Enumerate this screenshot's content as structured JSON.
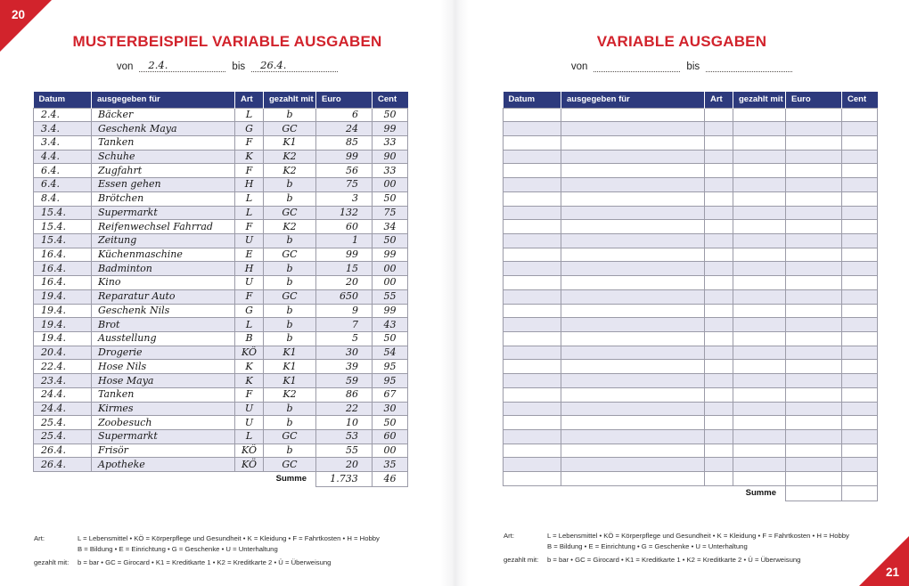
{
  "colors": {
    "red": "#d2232c",
    "blue": "#2d3a7d",
    "stripe": "#e5e5f1"
  },
  "page_left": {
    "page_number": "20",
    "title": "MUSTERBEISPIEL VARIABLE AUSGABEN",
    "von_label": "von",
    "bis_label": "bis",
    "von_value": "2.4.",
    "bis_value": "26.4.",
    "table": {
      "headers": [
        "Datum",
        "ausgegeben für",
        "Art",
        "gezahlt mit",
        "Euro",
        "Cent"
      ],
      "rows": [
        {
          "datum": "2.4.",
          "zweck": "Bäcker",
          "art": "L",
          "gezahlt": "b",
          "euro": "6",
          "cent": "50"
        },
        {
          "datum": "3.4.",
          "zweck": "Geschenk Maya",
          "art": "G",
          "gezahlt": "GC",
          "euro": "24",
          "cent": "99"
        },
        {
          "datum": "3.4.",
          "zweck": "Tanken",
          "art": "F",
          "gezahlt": "K1",
          "euro": "85",
          "cent": "33"
        },
        {
          "datum": "4.4.",
          "zweck": "Schuhe",
          "art": "K",
          "gezahlt": "K2",
          "euro": "99",
          "cent": "90"
        },
        {
          "datum": "6.4.",
          "zweck": "Zugfahrt",
          "art": "F",
          "gezahlt": "K2",
          "euro": "56",
          "cent": "33"
        },
        {
          "datum": "6.4.",
          "zweck": "Essen gehen",
          "art": "H",
          "gezahlt": "b",
          "euro": "75",
          "cent": "00"
        },
        {
          "datum": "8.4.",
          "zweck": "Brötchen",
          "art": "L",
          "gezahlt": "b",
          "euro": "3",
          "cent": "50"
        },
        {
          "datum": "15.4.",
          "zweck": "Supermarkt",
          "art": "L",
          "gezahlt": "GC",
          "euro": "132",
          "cent": "75"
        },
        {
          "datum": "15.4.",
          "zweck": "Reifenwechsel Fahrrad",
          "art": "F",
          "gezahlt": "K2",
          "euro": "60",
          "cent": "34"
        },
        {
          "datum": "15.4.",
          "zweck": "Zeitung",
          "art": "U",
          "gezahlt": "b",
          "euro": "1",
          "cent": "50"
        },
        {
          "datum": "16.4.",
          "zweck": "Küchenmaschine",
          "art": "E",
          "gezahlt": "GC",
          "euro": "99",
          "cent": "99"
        },
        {
          "datum": "16.4.",
          "zweck": "Badminton",
          "art": "H",
          "gezahlt": "b",
          "euro": "15",
          "cent": "00"
        },
        {
          "datum": "16.4.",
          "zweck": "Kino",
          "art": "U",
          "gezahlt": "b",
          "euro": "20",
          "cent": "00"
        },
        {
          "datum": "19.4.",
          "zweck": "Reparatur Auto",
          "art": "F",
          "gezahlt": "GC",
          "euro": "650",
          "cent": "55"
        },
        {
          "datum": "19.4.",
          "zweck": "Geschenk Nils",
          "art": "G",
          "gezahlt": "b",
          "euro": "9",
          "cent": "99"
        },
        {
          "datum": "19.4.",
          "zweck": "Brot",
          "art": "L",
          "gezahlt": "b",
          "euro": "7",
          "cent": "43"
        },
        {
          "datum": "19.4.",
          "zweck": "Ausstellung",
          "art": "B",
          "gezahlt": "b",
          "euro": "5",
          "cent": "50"
        },
        {
          "datum": "20.4.",
          "zweck": "Drogerie",
          "art": "KÖ",
          "gezahlt": "K1",
          "euro": "30",
          "cent": "54"
        },
        {
          "datum": "22.4.",
          "zweck": "Hose Nils",
          "art": "K",
          "gezahlt": "K1",
          "euro": "39",
          "cent": "95"
        },
        {
          "datum": "23.4.",
          "zweck": "Hose Maya",
          "art": "K",
          "gezahlt": "K1",
          "euro": "59",
          "cent": "95"
        },
        {
          "datum": "24.4.",
          "zweck": "Tanken",
          "art": "F",
          "gezahlt": "K2",
          "euro": "86",
          "cent": "67"
        },
        {
          "datum": "24.4.",
          "zweck": "Kirmes",
          "art": "U",
          "gezahlt": "b",
          "euro": "22",
          "cent": "30"
        },
        {
          "datum": "25.4.",
          "zweck": "Zoobesuch",
          "art": "U",
          "gezahlt": "b",
          "euro": "10",
          "cent": "50"
        },
        {
          "datum": "25.4.",
          "zweck": "Supermarkt",
          "art": "L",
          "gezahlt": "GC",
          "euro": "53",
          "cent": "60"
        },
        {
          "datum": "26.4.",
          "zweck": "Frisör",
          "art": "KÖ",
          "gezahlt": "b",
          "euro": "55",
          "cent": "00"
        },
        {
          "datum": "26.4.",
          "zweck": "Apotheke",
          "art": "KÖ",
          "gezahlt": "GC",
          "euro": "20",
          "cent": "35"
        }
      ],
      "summe_label": "Summe",
      "summe_euro": "1.733",
      "summe_cent": "46"
    },
    "legend": {
      "art_label": "Art:",
      "art_line1": "L = Lebensmittel • KÖ = Körperpflege und Gesundheit • K = Kleidung • F = Fahrtkosten • H = Hobby",
      "art_line2": "B = Bildung • E = Einrichtung • G = Geschenke • U = Unterhaltung",
      "paid_label": "gezahlt mit:",
      "paid_line": "b = bar • GC = Girocard • K1 = Kreditkarte 1 • K2 = Kreditkarte 2 • Ü = Überweisung"
    }
  },
  "page_right": {
    "page_number": "21",
    "title": "VARIABLE AUSGABEN",
    "von_label": "von",
    "bis_label": "bis",
    "von_value": "",
    "bis_value": "",
    "table": {
      "headers": [
        "Datum",
        "ausgegeben für",
        "Art",
        "gezahlt mit",
        "Euro",
        "Cent"
      ],
      "empty_row_count": 27,
      "summe_label": "Summe",
      "summe_euro": "",
      "summe_cent": ""
    },
    "legend": {
      "art_label": "Art:",
      "art_line1": "L = Lebensmittel • KÖ = Körperpflege und Gesundheit • K = Kleidung • F = Fahrtkosten • H = Hobby",
      "art_line2": "B = Bildung • E = Einrichtung • G = Geschenke • U = Unterhaltung",
      "paid_label": "gezahlt mit:",
      "paid_line": "b = bar • GC = Girocard • K1 = Kreditkarte 1 • K2 = Kreditkarte 2 • Ü = Überweisung"
    }
  }
}
